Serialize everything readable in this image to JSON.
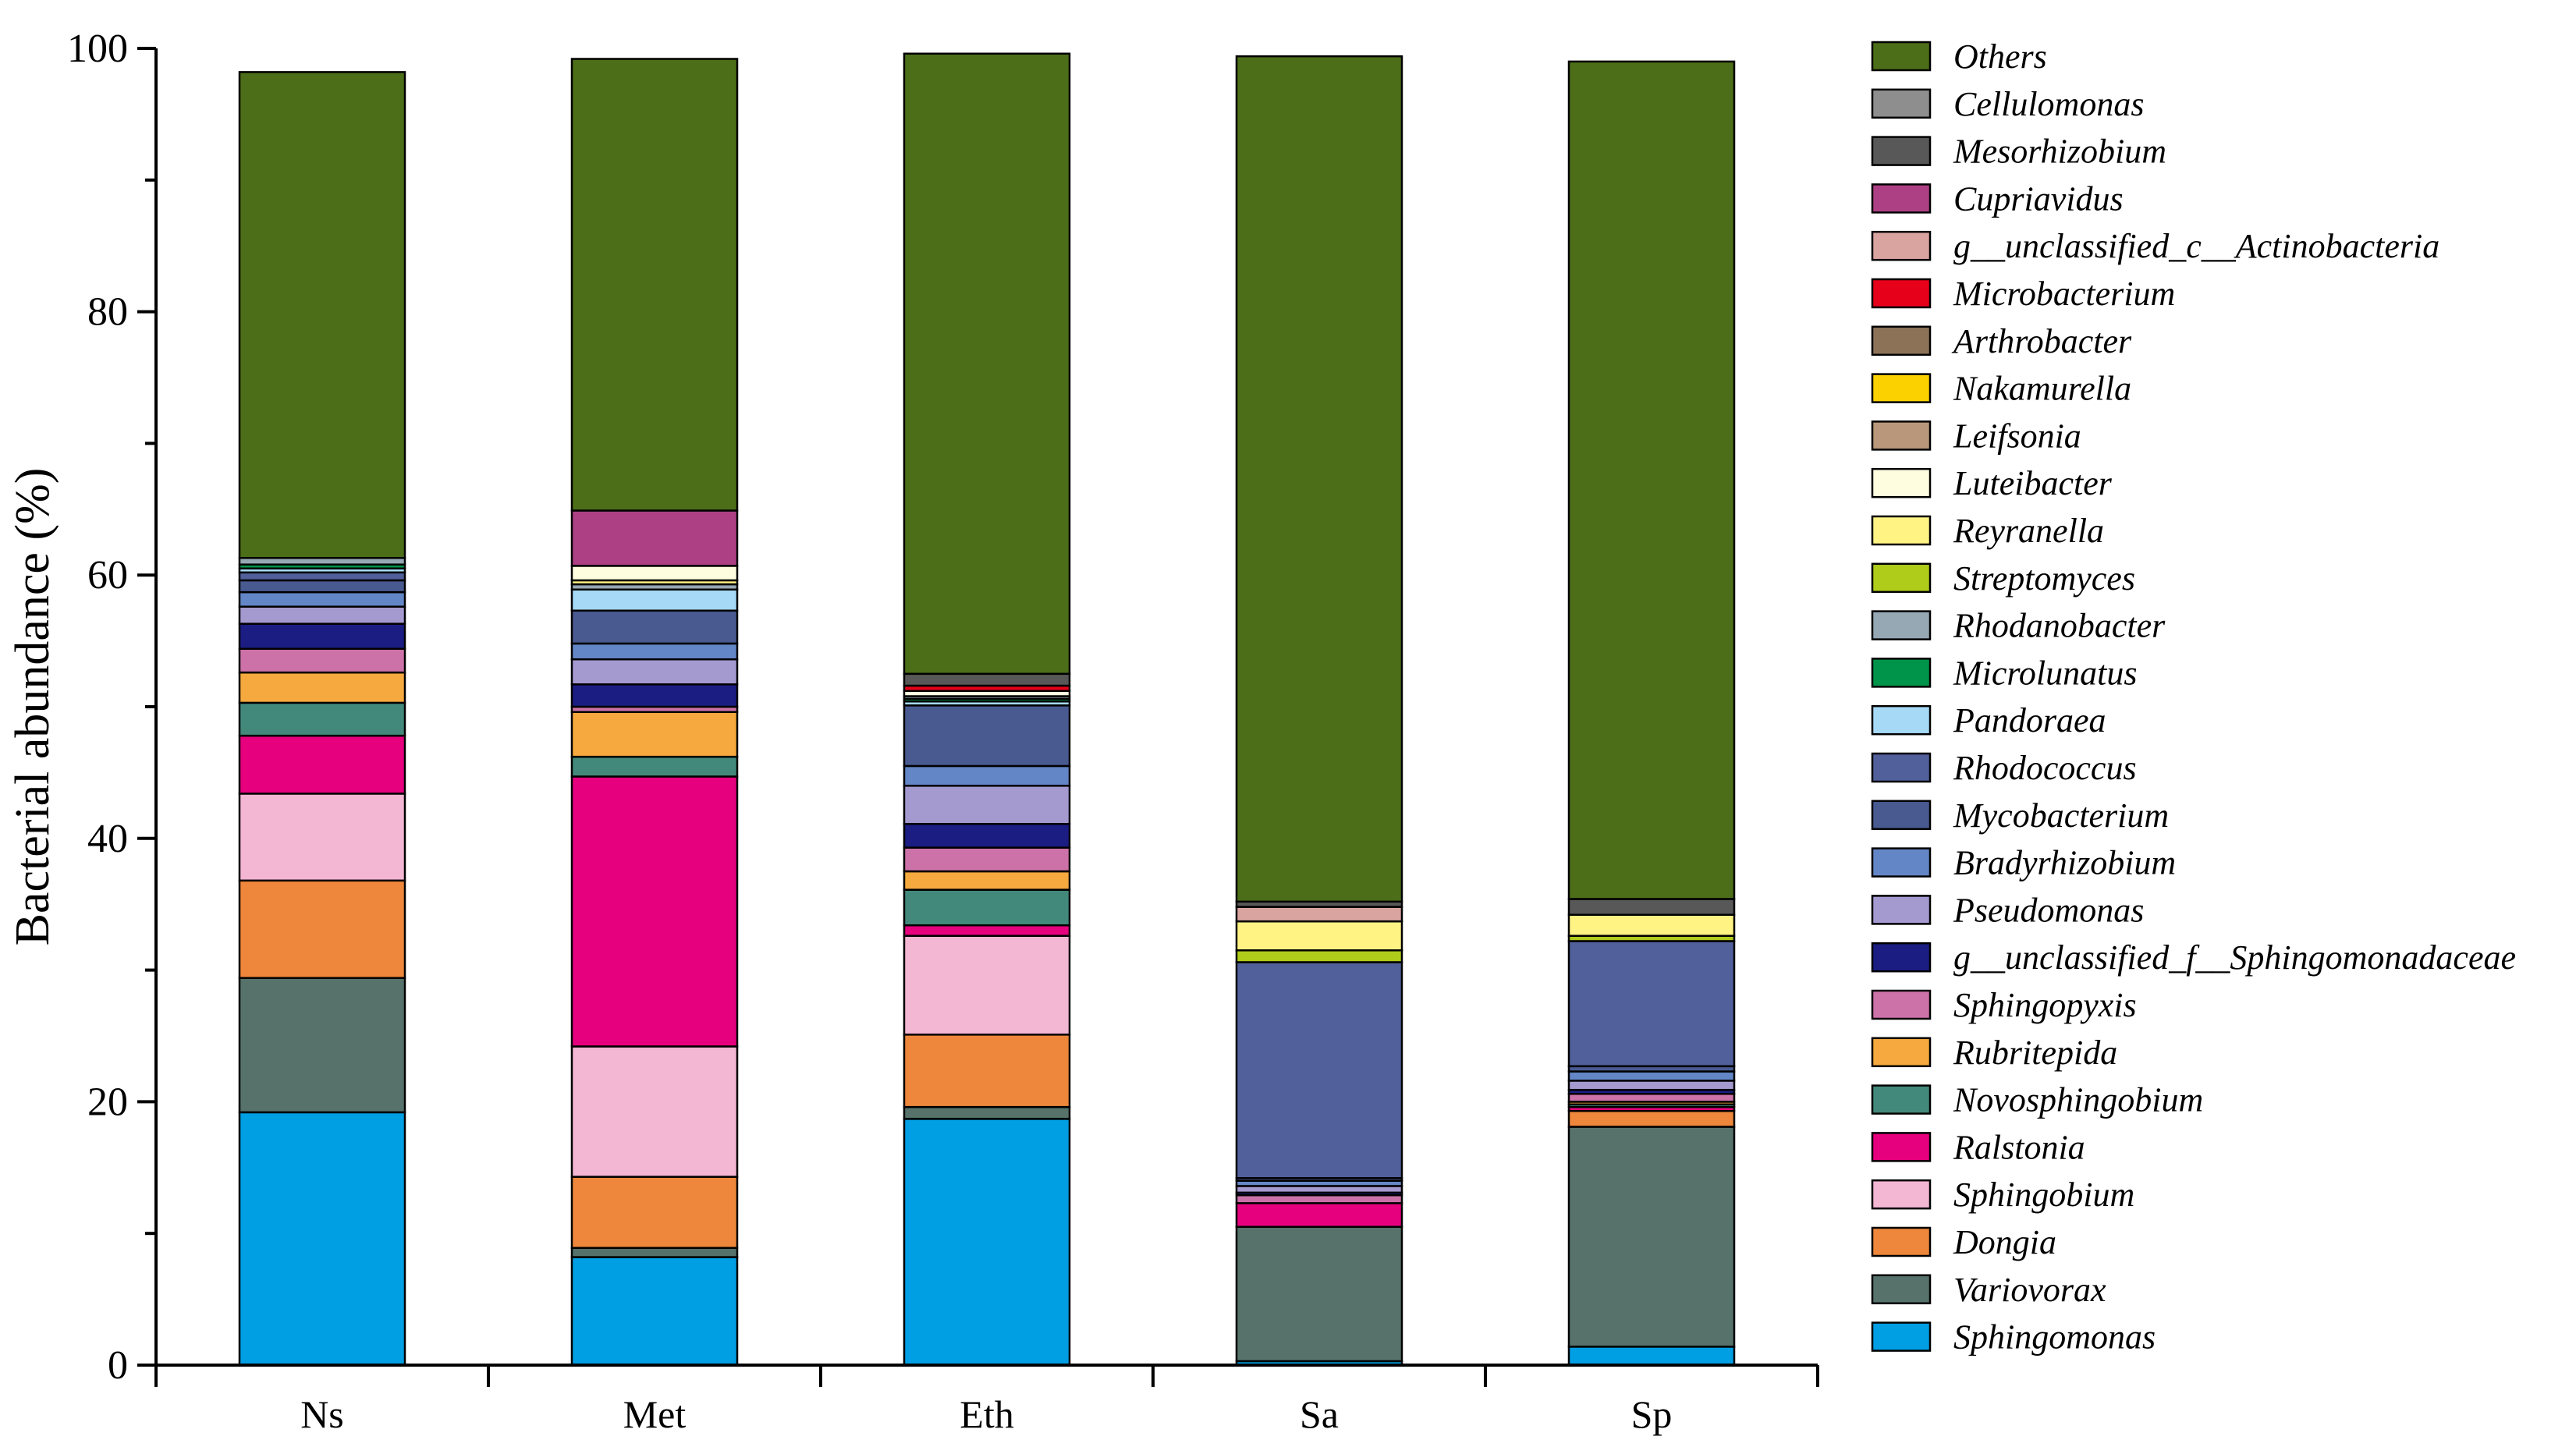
{
  "chart_data": {
    "type": "bar",
    "stacked": true,
    "title": "",
    "xlabel": "",
    "ylabel": "Bacterial abundance (%)",
    "ylim": [
      0,
      100
    ],
    "yticks": [
      0,
      20,
      40,
      60,
      80,
      100
    ],
    "legend_position": "right",
    "categories": [
      "Ns",
      "Met",
      "Eth",
      "Sa",
      "Sp"
    ],
    "series": [
      {
        "name": "Sphingomonas",
        "color": "#009ee3",
        "values": [
          19.2,
          8.2,
          18.7,
          0.3,
          1.4
        ]
      },
      {
        "name": "Variovorax",
        "color": "#56726b",
        "values": [
          10.2,
          0.7,
          0.9,
          10.2,
          16.7
        ]
      },
      {
        "name": "Dongia",
        "color": "#ee873b",
        "values": [
          7.4,
          5.4,
          5.5,
          0.0,
          1.2
        ]
      },
      {
        "name": "Sphingobium",
        "color": "#f3b6d3",
        "values": [
          6.6,
          9.9,
          7.5,
          0.0,
          0.0
        ]
      },
      {
        "name": "Ralstonia",
        "color": "#e6007e",
        "values": [
          4.4,
          20.5,
          0.8,
          1.8,
          0.3
        ]
      },
      {
        "name": "Novosphingobium",
        "color": "#43897b",
        "values": [
          2.5,
          1.5,
          2.7,
          0.0,
          0.2
        ]
      },
      {
        "name": "Rubritepida",
        "color": "#f5a93e",
        "values": [
          2.3,
          3.4,
          1.4,
          0.0,
          0.2
        ]
      },
      {
        "name": "Sphingopyxis",
        "color": "#cd72a8",
        "values": [
          1.8,
          0.4,
          1.8,
          0.6,
          0.6
        ]
      },
      {
        "name": "g__unclassified_f__Sphingomonadaceae",
        "color": "#1b1d82",
        "values": [
          1.9,
          1.7,
          1.8,
          0.2,
          0.3
        ]
      },
      {
        "name": "Pseudomonas",
        "color": "#a59ad0",
        "values": [
          1.3,
          1.9,
          2.9,
          0.5,
          0.7
        ]
      },
      {
        "name": "Bradyrhizobium",
        "color": "#6386c6",
        "values": [
          1.1,
          1.2,
          1.5,
          0.4,
          0.7
        ]
      },
      {
        "name": "Mycobacterium",
        "color": "#495a91",
        "values": [
          0.9,
          2.5,
          4.6,
          0.2,
          0.4
        ]
      },
      {
        "name": "Rhodococcus",
        "color": "#51609a",
        "values": [
          0.6,
          0.0,
          0.0,
          16.4,
          9.5
        ]
      },
      {
        "name": "Pandoraea",
        "color": "#a6d9f5",
        "values": [
          0.3,
          1.6,
          0.3,
          0.0,
          0.0
        ]
      },
      {
        "name": "Microlunatus",
        "color": "#00944a",
        "values": [
          0.3,
          0.0,
          0.2,
          0.0,
          0.0
        ]
      },
      {
        "name": "Rhodanobacter",
        "color": "#96a8b3",
        "values": [
          0.5,
          0.4,
          0.2,
          0.0,
          0.0
        ]
      },
      {
        "name": "Streptomyces",
        "color": "#b0cc1b",
        "values": [
          0.0,
          0.0,
          0.0,
          0.9,
          0.4
        ]
      },
      {
        "name": "Reyranella",
        "color": "#fff384",
        "values": [
          0.0,
          0.3,
          0.0,
          2.2,
          1.6
        ]
      },
      {
        "name": "Luteibacter",
        "color": "#fffde0",
        "values": [
          0.0,
          1.1,
          0.4,
          0.0,
          0.0
        ]
      },
      {
        "name": "Leifsonia",
        "color": "#b8977a",
        "values": [
          0.0,
          0.0,
          0.0,
          0.0,
          0.0
        ]
      },
      {
        "name": "Nakamurella",
        "color": "#fbd200",
        "values": [
          0.0,
          0.0,
          0.0,
          0.0,
          0.0
        ]
      },
      {
        "name": "Arthrobacter",
        "color": "#8c7358",
        "values": [
          0.0,
          0.0,
          0.0,
          0.0,
          0.0
        ]
      },
      {
        "name": "Microbacterium",
        "color": "#e7001a",
        "values": [
          0.0,
          0.0,
          0.4,
          0.0,
          0.0
        ]
      },
      {
        "name": "g__unclassified_c__Actinobacteria",
        "color": "#d9a3a0",
        "values": [
          0.0,
          0.0,
          0.0,
          1.1,
          0.0
        ]
      },
      {
        "name": "Cupriavidus",
        "color": "#ad4085",
        "values": [
          0.0,
          4.2,
          0.0,
          0.0,
          0.0
        ]
      },
      {
        "name": "Mesorhizobium",
        "color": "#585858",
        "values": [
          0.0,
          0.0,
          0.9,
          0.4,
          1.2
        ]
      },
      {
        "name": "Cellulomonas",
        "color": "#8e8e8e",
        "values": [
          0.0,
          0.0,
          0.0,
          0.0,
          0.0
        ]
      },
      {
        "name": "Others",
        "color": "#4c6e19",
        "values": [
          36.9,
          34.3,
          47.1,
          64.2,
          63.6
        ]
      }
    ]
  }
}
